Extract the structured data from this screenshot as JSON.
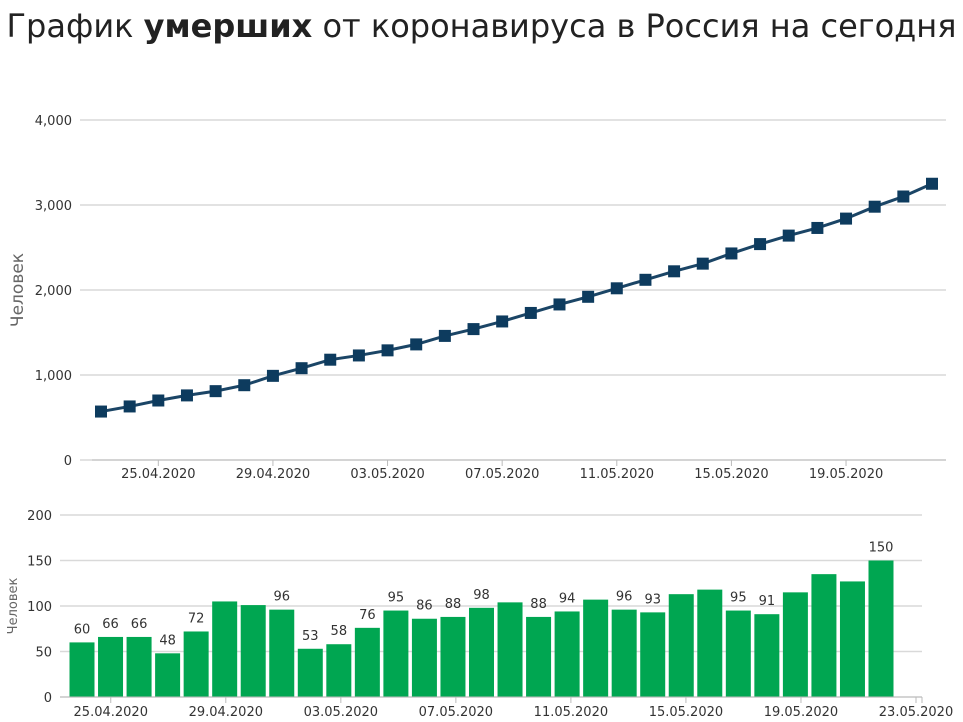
{
  "title": {
    "part1": "График ",
    "bold": "умерших",
    "part2": " от коронавируса в Россия на сегодня"
  },
  "colors": {
    "line": "#1b4566",
    "marker": "#0d3b5e",
    "bar": "#00a651",
    "grid": "#d9d9d9"
  },
  "chart_data": [
    {
      "type": "line",
      "ylabel": "Человек",
      "ylim": [
        0,
        4000
      ],
      "yticks": [
        "0",
        "1,000",
        "2,000",
        "3,000",
        "4,000"
      ],
      "yticks_values": [
        0,
        1000,
        2000,
        3000,
        4000
      ],
      "xticks": [
        "25.04.2020",
        "29.04.2020",
        "03.05.2020",
        "07.05.2020",
        "11.05.2020",
        "15.05.2020",
        "19.05.2020"
      ],
      "xticks_index": [
        2,
        6,
        10,
        14,
        18,
        22,
        26
      ],
      "x": [
        "23.04",
        "24.04",
        "25.04",
        "26.04",
        "27.04",
        "28.04",
        "29.04",
        "30.04",
        "01.05",
        "02.05",
        "03.05",
        "04.05",
        "05.05",
        "06.05",
        "07.05",
        "08.05",
        "09.05",
        "10.05",
        "11.05",
        "12.05",
        "13.05",
        "14.05",
        "15.05",
        "16.05",
        "17.05",
        "18.05",
        "19.05",
        "20.05",
        "21.05",
        "22.05"
      ],
      "values": [
        570,
        630,
        700,
        760,
        810,
        880,
        990,
        1080,
        1180,
        1230,
        1290,
        1360,
        1460,
        1540,
        1630,
        1730,
        1830,
        1920,
        2020,
        2120,
        2220,
        2310,
        2430,
        2540,
        2640,
        2730,
        2840,
        2980,
        3100,
        3250
      ]
    },
    {
      "type": "bar",
      "ylabel": "Человек",
      "ylim": [
        0,
        200
      ],
      "yticks": [
        "0",
        "50",
        "100",
        "150",
        "200"
      ],
      "yticks_values": [
        0,
        50,
        100,
        150,
        200
      ],
      "xticks": [
        "25.04.2020",
        "29.04.2020",
        "03.05.2020",
        "07.05.2020",
        "11.05.2020",
        "15.05.2020",
        "19.05.2020",
        "23.05.2020"
      ],
      "xticks_index": [
        1,
        5,
        9,
        13,
        17,
        21,
        25,
        29
      ],
      "values": [
        60,
        66,
        66,
        48,
        72,
        105,
        101,
        96,
        53,
        58,
        76,
        95,
        86,
        88,
        98,
        104,
        88,
        94,
        107,
        96,
        93,
        113,
        118,
        95,
        91,
        115,
        135,
        127,
        150
      ],
      "labels": [
        "60",
        "66",
        "66",
        "48",
        "72",
        "",
        "",
        "96",
        "53",
        "58",
        "76",
        "95",
        "86",
        "88",
        "98",
        "",
        "88",
        "94",
        "",
        "96",
        "93",
        "",
        "",
        "95",
        "91",
        "",
        "",
        "",
        "150"
      ]
    }
  ]
}
